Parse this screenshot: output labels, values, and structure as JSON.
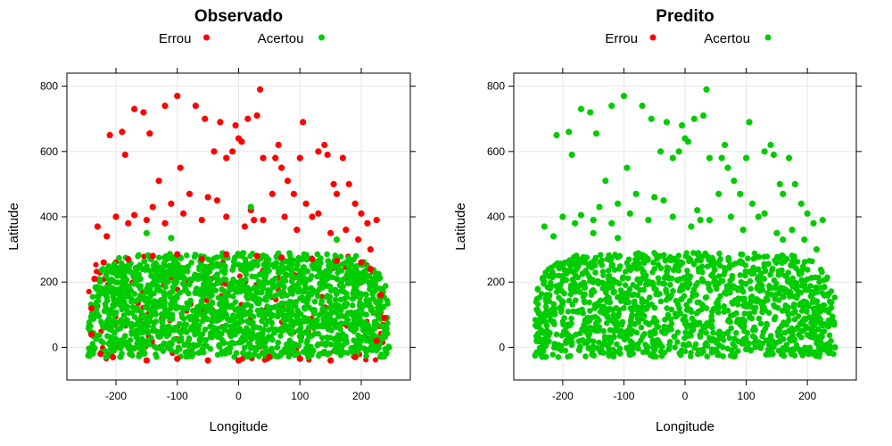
{
  "colors": {
    "errou": "#ff0000",
    "acertou": "#00cc00",
    "grid": "#e6e6e6",
    "frame": "#000000"
  },
  "chart_data": [
    {
      "type": "scatter",
      "title": "Observado",
      "xlabel": "Longitude",
      "ylabel": "Latitude",
      "xlim": [
        -280,
        280
      ],
      "ylim": [
        -100,
        840
      ],
      "xticks": [
        -200,
        -100,
        0,
        100,
        200
      ],
      "yticks": [
        0,
        200,
        400,
        600,
        800
      ],
      "grid": true,
      "legend": {
        "placement": "top",
        "entries": [
          {
            "label": "Errou",
            "series": "errou"
          },
          {
            "label": "Acertou",
            "series": "acertou"
          }
        ]
      },
      "series": [
        {
          "name": "Errou",
          "key": "errou",
          "points": [
            [
              -210,
              650
            ],
            [
              -190,
              660
            ],
            [
              -185,
              590
            ],
            [
              -170,
              730
            ],
            [
              -155,
              720
            ],
            [
              -145,
              655
            ],
            [
              -130,
              510
            ],
            [
              -120,
              740
            ],
            [
              -100,
              770
            ],
            [
              -95,
              550
            ],
            [
              -80,
              470
            ],
            [
              -70,
              740
            ],
            [
              -55,
              700
            ],
            [
              -50,
              460
            ],
            [
              -40,
              600
            ],
            [
              -30,
              690
            ],
            [
              -20,
              580
            ],
            [
              -10,
              600
            ],
            [
              -5,
              680
            ],
            [
              0,
              640
            ],
            [
              5,
              630
            ],
            [
              15,
              700
            ],
            [
              20,
              420
            ],
            [
              25,
              390
            ],
            [
              30,
              710
            ],
            [
              35,
              790
            ],
            [
              40,
              580
            ],
            [
              55,
              470
            ],
            [
              60,
              580
            ],
            [
              65,
              620
            ],
            [
              70,
              550
            ],
            [
              80,
              510
            ],
            [
              90,
              470
            ],
            [
              100,
              580
            ],
            [
              105,
              690
            ],
            [
              110,
              440
            ],
            [
              120,
              400
            ],
            [
              130,
              600
            ],
            [
              140,
              620
            ],
            [
              145,
              590
            ],
            [
              155,
              500
            ],
            [
              160,
              470
            ],
            [
              170,
              580
            ],
            [
              180,
              500
            ],
            [
              190,
              440
            ],
            [
              200,
              410
            ],
            [
              210,
              380
            ],
            [
              225,
              390
            ],
            [
              -230,
              370
            ],
            [
              -215,
              340
            ],
            [
              -200,
              400
            ],
            [
              -180,
              380
            ],
            [
              -170,
              405
            ],
            [
              -150,
              390
            ],
            [
              -140,
              430
            ],
            [
              -120,
              380
            ],
            [
              -110,
              440
            ],
            [
              -90,
              410
            ],
            [
              -60,
              390
            ],
            [
              -35,
              450
            ],
            [
              -20,
              400
            ],
            [
              10,
              370
            ],
            [
              40,
              390
            ],
            [
              75,
              400
            ],
            [
              95,
              360
            ],
            [
              130,
              410
            ],
            [
              150,
              350
            ],
            [
              175,
              360
            ],
            [
              195,
              330
            ],
            [
              215,
              300
            ],
            [
              -240,
              120
            ],
            [
              -240,
              40
            ],
            [
              -225,
              -20
            ],
            [
              -205,
              -30
            ],
            [
              -150,
              -40
            ],
            [
              -100,
              -35
            ],
            [
              -50,
              -40
            ],
            [
              0,
              -40
            ],
            [
              50,
              -30
            ],
            [
              100,
              -35
            ],
            [
              150,
              -40
            ],
            [
              190,
              -30
            ],
            [
              225,
              20
            ],
            [
              238,
              90
            ],
            [
              232,
              160
            ],
            [
              215,
              240
            ],
            [
              -235,
              210
            ],
            [
              -220,
              260
            ],
            [
              -180,
              270
            ],
            [
              -140,
              280
            ],
            [
              -100,
              285
            ],
            [
              -60,
              270
            ],
            [
              -20,
              285
            ],
            [
              30,
              280
            ],
            [
              70,
              275
            ],
            [
              120,
              270
            ],
            [
              160,
              265
            ],
            [
              200,
              260
            ]
          ]
        },
        {
          "name": "Acertou",
          "key": "acertou",
          "points": [
            [
              -150,
              350
            ],
            [
              -110,
              335
            ],
            [
              20,
              430
            ],
            [
              160,
              330
            ],
            [
              -245,
              -25
            ],
            [
              245,
              0
            ]
          ]
        }
      ]
    },
    {
      "type": "scatter",
      "title": "Predito",
      "xlabel": "Longitude",
      "ylabel": "Latitude",
      "xlim": [
        -280,
        280
      ],
      "ylim": [
        -100,
        840
      ],
      "xticks": [
        -200,
        -100,
        0,
        100,
        200
      ],
      "yticks": [
        0,
        200,
        400,
        600,
        800
      ],
      "grid": true,
      "legend": {
        "placement": "top",
        "entries": [
          {
            "label": "Errou",
            "series": "errou"
          },
          {
            "label": "Acertou",
            "series": "acertou"
          }
        ]
      },
      "series": [
        {
          "name": "Acertou",
          "key": "acertou",
          "points": [
            [
              -210,
              650
            ],
            [
              -190,
              660
            ],
            [
              -185,
              590
            ],
            [
              -170,
              730
            ],
            [
              -155,
              720
            ],
            [
              -145,
              655
            ],
            [
              -130,
              510
            ],
            [
              -120,
              740
            ],
            [
              -100,
              770
            ],
            [
              -95,
              550
            ],
            [
              -80,
              470
            ],
            [
              -70,
              740
            ],
            [
              -55,
              700
            ],
            [
              -50,
              460
            ],
            [
              -40,
              600
            ],
            [
              -30,
              690
            ],
            [
              -20,
              580
            ],
            [
              -10,
              600
            ],
            [
              -5,
              680
            ],
            [
              0,
              640
            ],
            [
              5,
              630
            ],
            [
              15,
              700
            ],
            [
              20,
              420
            ],
            [
              25,
              390
            ],
            [
              30,
              710
            ],
            [
              35,
              790
            ],
            [
              40,
              580
            ],
            [
              55,
              470
            ],
            [
              60,
              580
            ],
            [
              65,
              620
            ],
            [
              70,
              550
            ],
            [
              80,
              510
            ],
            [
              90,
              470
            ],
            [
              100,
              580
            ],
            [
              105,
              690
            ],
            [
              110,
              440
            ],
            [
              120,
              400
            ],
            [
              130,
              600
            ],
            [
              140,
              620
            ],
            [
              145,
              590
            ],
            [
              155,
              500
            ],
            [
              160,
              470
            ],
            [
              170,
              580
            ],
            [
              180,
              500
            ],
            [
              190,
              440
            ],
            [
              200,
              410
            ],
            [
              210,
              380
            ],
            [
              225,
              390
            ],
            [
              -230,
              370
            ],
            [
              -215,
              340
            ],
            [
              -200,
              400
            ],
            [
              -180,
              380
            ],
            [
              -170,
              405
            ],
            [
              -150,
              390
            ],
            [
              -140,
              430
            ],
            [
              -120,
              380
            ],
            [
              -110,
              440
            ],
            [
              -90,
              410
            ],
            [
              -60,
              390
            ],
            [
              -35,
              450
            ],
            [
              -20,
              400
            ],
            [
              10,
              370
            ],
            [
              40,
              390
            ],
            [
              75,
              400
            ],
            [
              95,
              360
            ],
            [
              130,
              410
            ],
            [
              150,
              350
            ],
            [
              175,
              360
            ],
            [
              195,
              330
            ],
            [
              215,
              300
            ],
            [
              -150,
              350
            ],
            [
              -110,
              335
            ],
            [
              160,
              330
            ],
            [
              -245,
              -25
            ],
            [
              245,
              0
            ]
          ]
        }
      ]
    }
  ]
}
